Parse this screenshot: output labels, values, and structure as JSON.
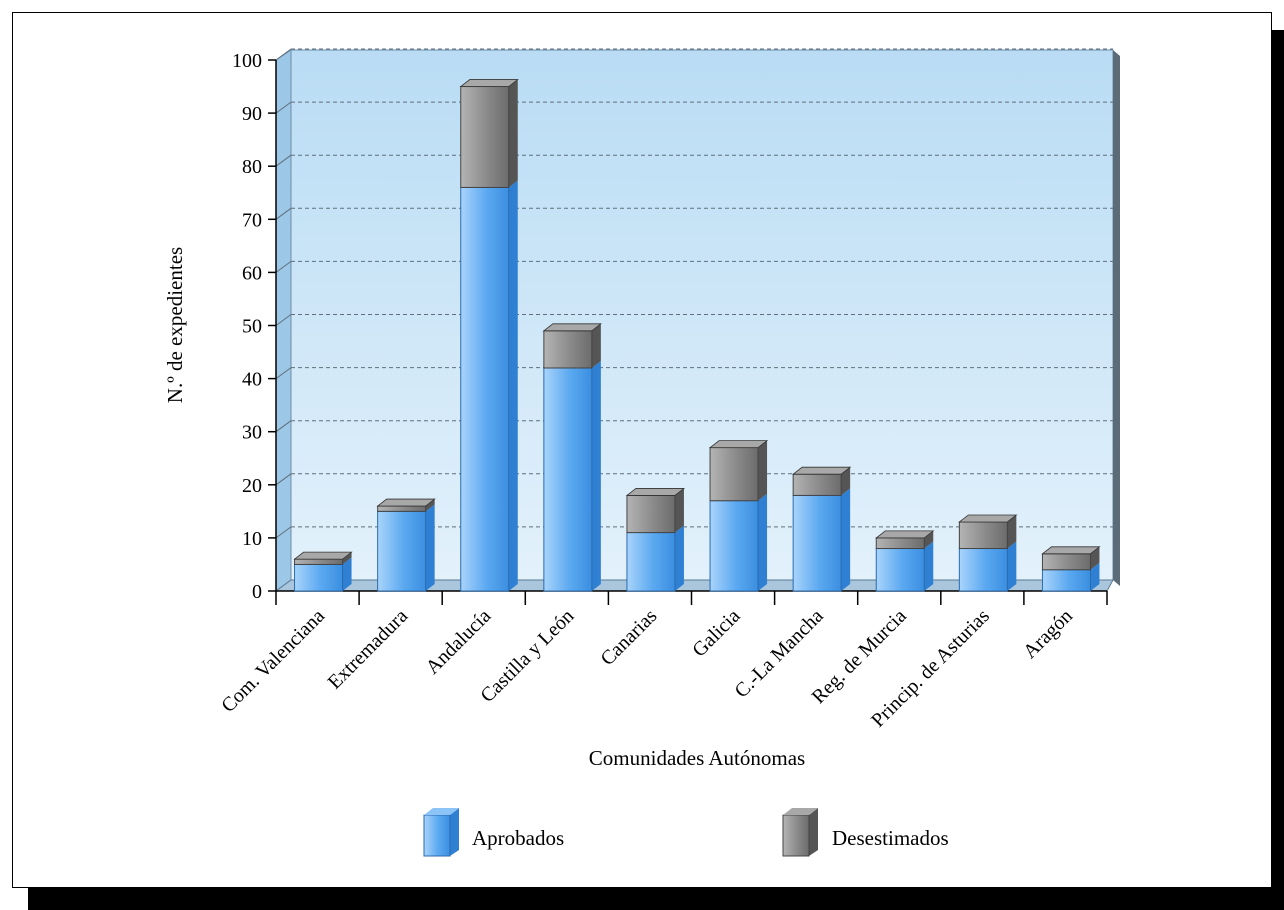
{
  "chart_data": {
    "type": "bar",
    "stacked": true,
    "categories": [
      "Com. Valenciana",
      "Extremadura",
      "Andalucía",
      "Castilla y León",
      "Canarias",
      "Galicia",
      "C.-La Mancha",
      "Reg. de Murcia",
      "Princip. de Asturias",
      "Aragón"
    ],
    "series": [
      {
        "name": "Aprobados",
        "values": [
          5,
          15,
          76,
          42,
          11,
          17,
          18,
          8,
          8,
          4
        ],
        "color": "#5aa8f0"
      },
      {
        "name": "Desestimados",
        "values": [
          1,
          1,
          19,
          7,
          7,
          10,
          4,
          2,
          5,
          3
        ],
        "color": "#8a8a8a"
      }
    ],
    "title": "",
    "xlabel": "Comunidades Autónomas",
    "ylabel": "N.º de expedientes",
    "ylim": [
      0,
      100
    ],
    "yticks": [
      0,
      10,
      20,
      30,
      40,
      50,
      60,
      70,
      80,
      90,
      100
    ],
    "grid": true,
    "legend_position": "bottom",
    "plot_background": "#cfe7f7"
  }
}
